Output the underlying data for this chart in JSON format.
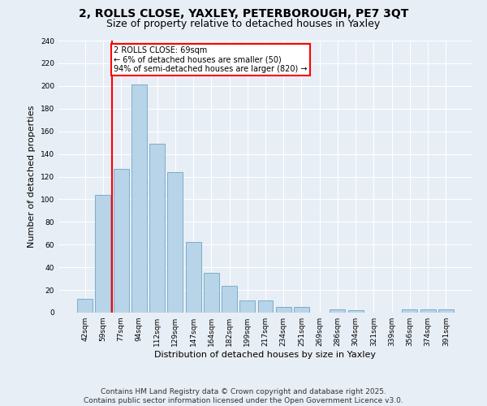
{
  "title": "2, ROLLS CLOSE, YAXLEY, PETERBOROUGH, PE7 3QT",
  "subtitle": "Size of property relative to detached houses in Yaxley",
  "xlabel": "Distribution of detached houses by size in Yaxley",
  "ylabel": "Number of detached properties",
  "categories": [
    "42sqm",
    "59sqm",
    "77sqm",
    "94sqm",
    "112sqm",
    "129sqm",
    "147sqm",
    "164sqm",
    "182sqm",
    "199sqm",
    "217sqm",
    "234sqm",
    "251sqm",
    "269sqm",
    "286sqm",
    "304sqm",
    "321sqm",
    "339sqm",
    "356sqm",
    "374sqm",
    "391sqm"
  ],
  "values": [
    12,
    104,
    127,
    201,
    149,
    124,
    62,
    35,
    24,
    11,
    11,
    5,
    5,
    0,
    3,
    2,
    0,
    0,
    3,
    3,
    3
  ],
  "bar_color": "#b8d4e8",
  "bar_edge_color": "#7aaec8",
  "vline_x": 1.5,
  "vline_color": "red",
  "annotation_text": "2 ROLLS CLOSE: 69sqm\n← 6% of detached houses are smaller (50)\n94% of semi-detached houses are larger (820) →",
  "annotation_box_color": "white",
  "annotation_box_edge": "red",
  "ylim": [
    0,
    240
  ],
  "yticks": [
    0,
    20,
    40,
    60,
    80,
    100,
    120,
    140,
    160,
    180,
    200,
    220,
    240
  ],
  "background_color": "#e8eef5",
  "grid_color": "white",
  "footer": "Contains HM Land Registry data © Crown copyright and database right 2025.\nContains public sector information licensed under the Open Government Licence v3.0.",
  "title_fontsize": 10,
  "subtitle_fontsize": 9,
  "xlabel_fontsize": 8,
  "ylabel_fontsize": 8,
  "tick_fontsize": 6.5,
  "footer_fontsize": 6.5,
  "annotation_fontsize": 7
}
